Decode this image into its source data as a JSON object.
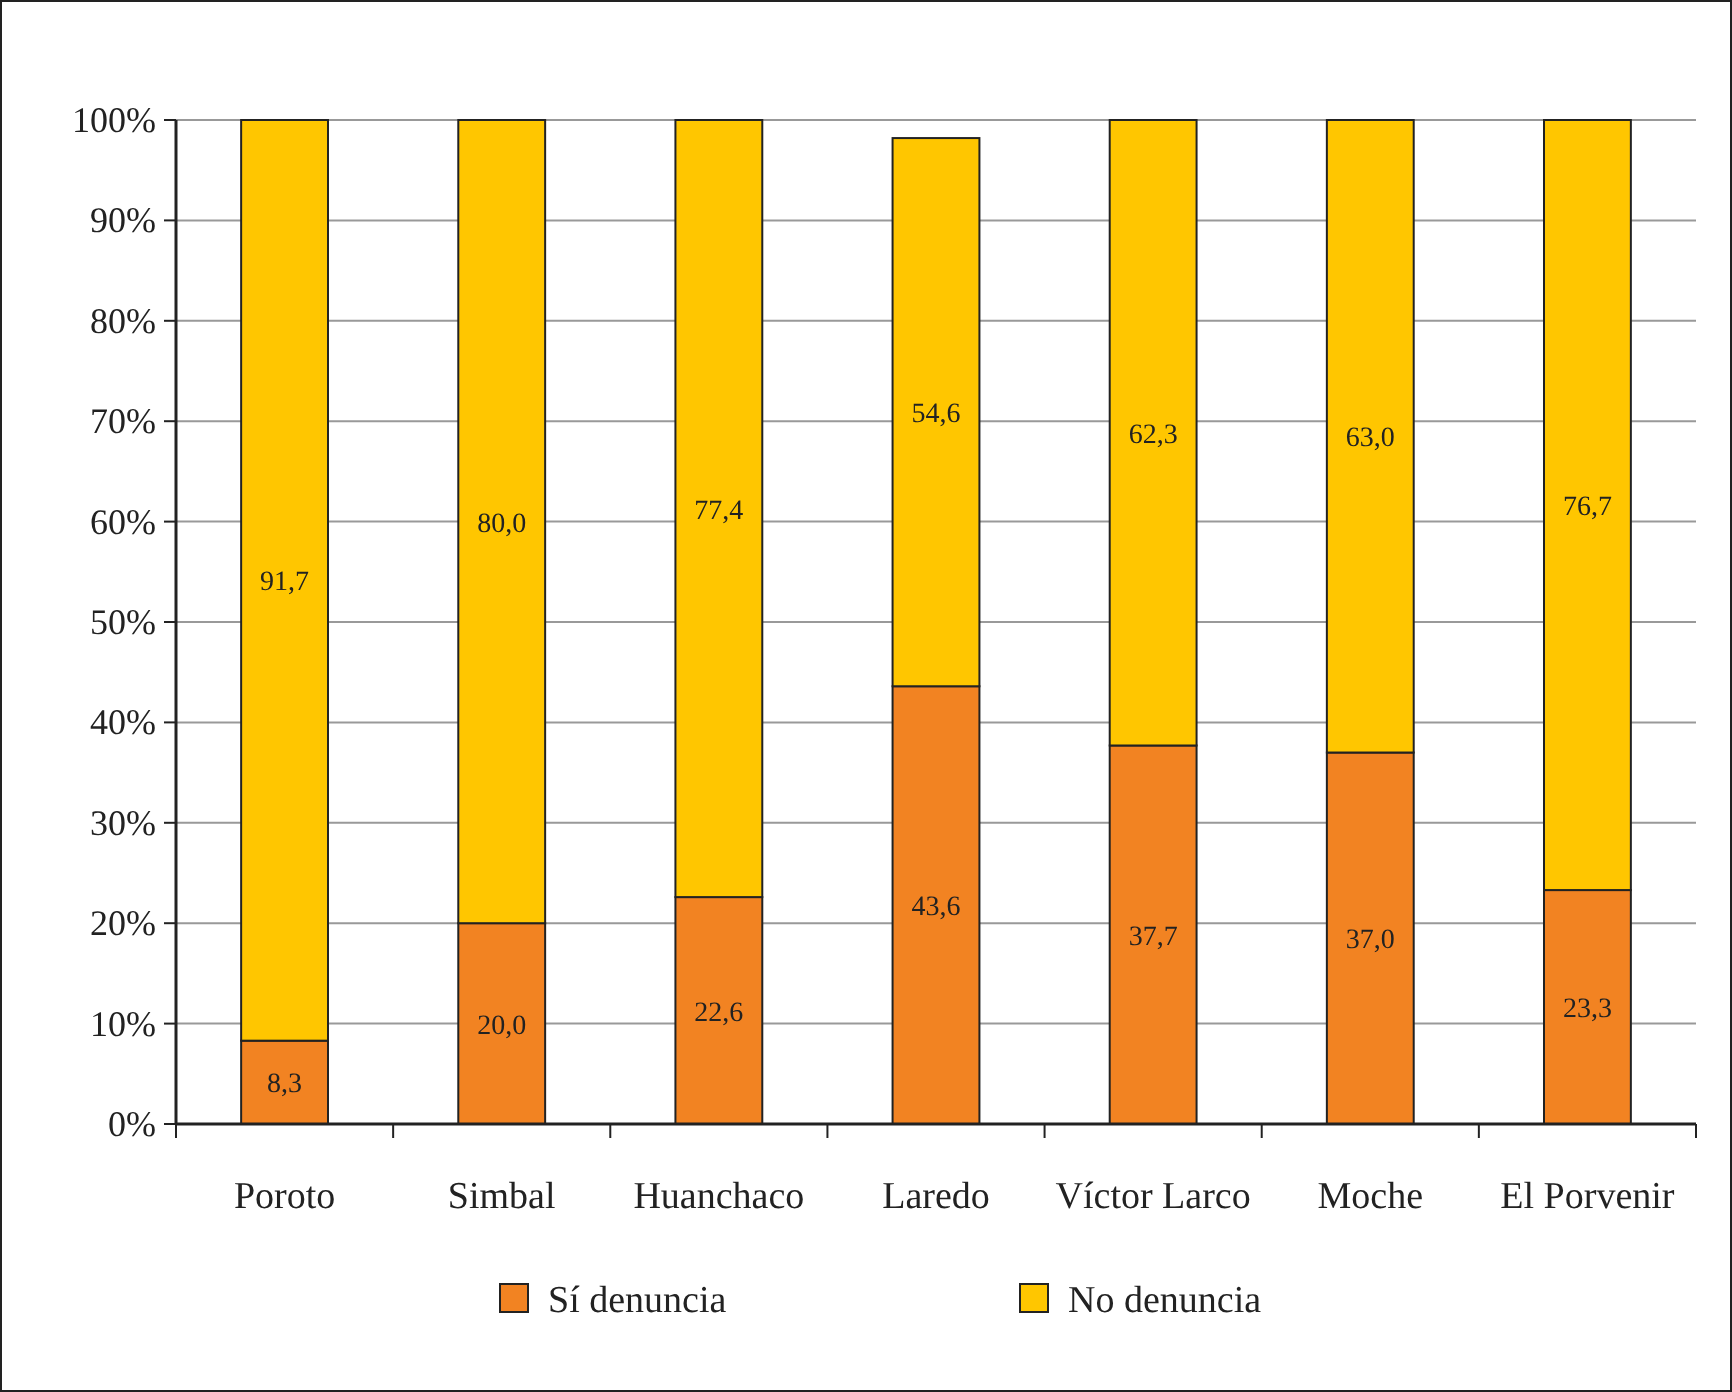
{
  "chart_data": {
    "type": "bar",
    "stacked": true,
    "categories": [
      "Poroto",
      "Simbal",
      "Huanchaco",
      "Laredo",
      "Víctor Larco",
      "Moche",
      "El Porvenir"
    ],
    "series": [
      {
        "name": "Sí denuncia",
        "color": "#f28322",
        "values": [
          8.3,
          20.0,
          22.6,
          43.6,
          37.7,
          37.0,
          23.3
        ],
        "value_labels": [
          "8,3",
          "20,0",
          "22,6",
          "43,6",
          "37,7",
          "37,0",
          "23,3"
        ]
      },
      {
        "name": "No denuncia",
        "color": "#ffc600",
        "values": [
          91.7,
          80.0,
          77.4,
          54.6,
          62.3,
          63.0,
          76.7
        ],
        "value_labels": [
          "91,7",
          "80,0",
          "77,4",
          "54,6",
          "62,3",
          "63,0",
          "76,7"
        ]
      }
    ],
    "ylim": [
      0,
      100
    ],
    "yticks": [
      {
        "value": 0,
        "label": "0%"
      },
      {
        "value": 10,
        "label": "10%"
      },
      {
        "value": 20,
        "label": "20%"
      },
      {
        "value": 30,
        "label": "30%"
      },
      {
        "value": 40,
        "label": "40%"
      },
      {
        "value": 50,
        "label": "50%"
      },
      {
        "value": 60,
        "label": "60%"
      },
      {
        "value": 70,
        "label": "70%"
      },
      {
        "value": 80,
        "label": "80%"
      },
      {
        "value": 90,
        "label": "90%"
      },
      {
        "value": 100,
        "label": "100%"
      }
    ],
    "grid": "y",
    "legend": "bottom"
  }
}
